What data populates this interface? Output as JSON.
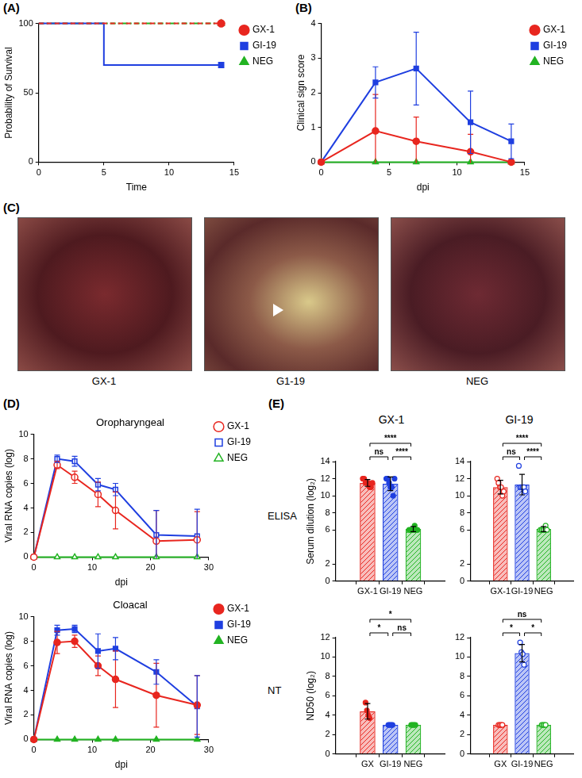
{
  "panel_labels": [
    "(A)",
    "(B)",
    "(C)",
    "(D)",
    "(E)"
  ],
  "photos": {
    "labels": [
      "GX-1",
      "G1-19",
      "NEG"
    ]
  },
  "panel_e": {
    "column_heads": [
      "GX-1",
      "GI-19"
    ],
    "row_labels": [
      "ELISA",
      "NT"
    ]
  },
  "chart_data": [
    {
      "type": "step",
      "x_label": "Time",
      "y_label": "Probability of Survival",
      "xlim": [
        0,
        15
      ],
      "xticks": [
        0,
        5,
        10,
        15
      ],
      "ylim": [
        0,
        100
      ],
      "yticks": [
        0,
        50,
        100
      ],
      "grid": false,
      "legend": "right",
      "series": [
        {
          "name": "GX-1",
          "color": "#e8261f",
          "marker": "circle",
          "line_style": "dashed",
          "x": [
            0,
            14
          ],
          "values": [
            100,
            100
          ]
        },
        {
          "name": "GI-19",
          "color": "#1f3fe0",
          "marker": "square",
          "line_style": "solid",
          "x": [
            0,
            5,
            14
          ],
          "values": [
            100,
            70,
            70
          ]
        },
        {
          "name": "NEG",
          "color": "#22b322",
          "marker": "triangle",
          "line_style": "dashdot",
          "x": [
            0,
            14
          ],
          "values": [
            100,
            100
          ]
        }
      ]
    },
    {
      "type": "line",
      "x_label": "dpi",
      "y_label": "Clinical sign score",
      "x": [
        0,
        4,
        7,
        11,
        14
      ],
      "xlim": [
        0,
        15
      ],
      "xticks": [
        0,
        5,
        10,
        15
      ],
      "ylim": [
        0,
        4
      ],
      "yticks": [
        0,
        1,
        2,
        3,
        4
      ],
      "grid": false,
      "legend": "right",
      "series": [
        {
          "name": "GX-1",
          "color": "#e8261f",
          "marker": "circle",
          "line_style": "solid",
          "values": [
            0,
            0.9,
            0.6,
            0.3,
            0
          ],
          "errors": [
            0,
            1.05,
            0.7,
            0.5,
            0
          ]
        },
        {
          "name": "GI-19",
          "color": "#1f3fe0",
          "marker": "square",
          "line_style": "solid",
          "values": [
            0,
            2.3,
            2.7,
            1.15,
            0.6
          ],
          "errors": [
            0,
            0.45,
            1.05,
            0.9,
            0.5
          ]
        },
        {
          "name": "NEG",
          "color": "#22b322",
          "marker": "triangle",
          "line_style": "solid",
          "values": [
            0,
            0,
            0,
            0,
            0
          ],
          "errors": [
            0,
            0,
            0,
            0,
            0
          ]
        }
      ]
    },
    {
      "type": "line",
      "title": "Oropharyngeal",
      "x_label": "dpi",
      "y_label": "Viral RNA copies (log)",
      "x": [
        0,
        4,
        7,
        11,
        14,
        21,
        28
      ],
      "xlim": [
        0,
        30
      ],
      "xticks": [
        0,
        10,
        20,
        30
      ],
      "ylim": [
        0,
        10
      ],
      "yticks": [
        0,
        2,
        4,
        6,
        8,
        10
      ],
      "grid": false,
      "legend": "right",
      "series": [
        {
          "name": "GX-1",
          "color": "#e8261f",
          "marker": "open_circle",
          "line_style": "solid",
          "values": [
            0,
            7.5,
            6.5,
            5.1,
            3.8,
            1.3,
            1.4
          ],
          "errors": [
            0,
            0.3,
            0.5,
            1.0,
            1.5,
            2.5,
            2.3
          ]
        },
        {
          "name": "GI-19",
          "color": "#1f3fe0",
          "marker": "open_square",
          "line_style": "solid",
          "values": [
            0,
            8.0,
            7.8,
            5.9,
            5.5,
            1.8,
            1.7
          ],
          "errors": [
            0,
            0.3,
            0.4,
            0.5,
            0.5,
            2.0,
            2.2
          ]
        },
        {
          "name": "NEG",
          "color": "#22b322",
          "marker": "open_triangle",
          "line_style": "solid",
          "values": [
            0,
            0,
            0,
            0,
            0,
            0,
            0
          ],
          "errors": [
            0,
            0,
            0,
            0,
            0,
            0,
            0
          ]
        }
      ]
    },
    {
      "type": "line",
      "title": "Cloacal",
      "x_label": "dpi",
      "y_label": "Viral RNA copies (log)",
      "x": [
        0,
        4,
        7,
        11,
        14,
        21,
        28
      ],
      "xlim": [
        0,
        30
      ],
      "xticks": [
        0,
        10,
        20,
        30
      ],
      "ylim": [
        0,
        10
      ],
      "yticks": [
        0,
        2,
        4,
        6,
        8,
        10
      ],
      "grid": false,
      "legend": "right",
      "series": [
        {
          "name": "GX-1",
          "color": "#e8261f",
          "marker": "circle",
          "line_style": "solid",
          "values": [
            0,
            7.9,
            8.0,
            6.0,
            4.9,
            3.6,
            2.8
          ],
          "errors": [
            0,
            0.9,
            0.5,
            0.8,
            2.3,
            2.6,
            2.4
          ]
        },
        {
          "name": "GI-19",
          "color": "#1f3fe0",
          "marker": "square",
          "line_style": "solid",
          "values": [
            0,
            8.9,
            9.0,
            7.2,
            7.4,
            5.5,
            2.7
          ],
          "errors": [
            0,
            0.4,
            0.3,
            1.4,
            0.9,
            1.0,
            2.5
          ]
        },
        {
          "name": "NEG",
          "color": "#22b322",
          "marker": "triangle",
          "line_style": "solid",
          "values": [
            0,
            0,
            0,
            0,
            0,
            0,
            0
          ],
          "errors": [
            0,
            0,
            0,
            0,
            0,
            0,
            0
          ]
        }
      ]
    },
    {
      "type": "bar",
      "y_label": "Serum dilution (log₂)",
      "categories": [
        "GX-1",
        "GI-19",
        "NEG"
      ],
      "colors": [
        "#e8261f",
        "#1f3fe0",
        "#22b322"
      ],
      "values": [
        11.5,
        11.4,
        6.1
      ],
      "errors": [
        0.4,
        0.8,
        0.3
      ],
      "points": [
        [
          12,
          12,
          11.5,
          11.5,
          11.5,
          11,
          11,
          11.5
        ],
        [
          12,
          12,
          11.5,
          11,
          11,
          10,
          12
        ],
        [
          6,
          6,
          6,
          6,
          6.5,
          6,
          6
        ]
      ],
      "marker": "circle",
      "ylim": [
        0,
        14
      ],
      "yticks": [
        0,
        2,
        6,
        8,
        10,
        12,
        14
      ],
      "grid": false,
      "comparisons": [
        {
          "between": [
            "GX-1",
            "GI-19"
          ],
          "label": "ns"
        },
        {
          "between": [
            "GI-19",
            "NEG"
          ],
          "label": "****"
        },
        {
          "between": [
            "GX-1",
            "NEG"
          ],
          "label": "****"
        }
      ]
    },
    {
      "type": "bar",
      "categories": [
        "GX-1",
        "GI-19",
        "NEG"
      ],
      "colors": [
        "#e8261f",
        "#1f3fe0",
        "#22b322"
      ],
      "values": [
        11.0,
        11.3,
        6.1
      ],
      "errors": [
        0.8,
        1.2,
        0.3
      ],
      "points": [
        [
          12,
          11.5,
          11,
          11,
          10,
          10.5
        ],
        [
          13.5,
          11,
          11,
          11,
          11,
          10.5
        ],
        [
          6,
          6,
          6,
          6,
          6.5,
          6
        ]
      ],
      "marker": "open_circle",
      "ylim": [
        0,
        14
      ],
      "yticks": [
        0,
        2,
        6,
        8,
        10,
        12,
        14
      ],
      "grid": false,
      "comparisons": [
        {
          "between": [
            "GX-1",
            "GI-19"
          ],
          "label": "ns"
        },
        {
          "between": [
            "GI-19",
            "NEG"
          ],
          "label": "****"
        },
        {
          "between": [
            "GX-1",
            "NEG"
          ],
          "label": "****"
        }
      ]
    },
    {
      "type": "bar",
      "y_label": "ND50 (log₂)",
      "categories": [
        "GX",
        "GI-19",
        "NEG"
      ],
      "colors": [
        "#e8261f",
        "#1f3fe0",
        "#22b322"
      ],
      "values": [
        4.4,
        3,
        3
      ],
      "errors": [
        0.8,
        0,
        0
      ],
      "points": [
        [
          5.3,
          4.5,
          4,
          3.7
        ],
        [
          3,
          3,
          3,
          3
        ],
        [
          3,
          3,
          3,
          3
        ]
      ],
      "marker": "circle",
      "ylim": [
        0,
        12
      ],
      "yticks": [
        0,
        2,
        4,
        6,
        8,
        10,
        12
      ],
      "grid": false,
      "comparisons": [
        {
          "between": [
            "GX",
            "GI-19"
          ],
          "label": "*"
        },
        {
          "between": [
            "GI-19",
            "NEG"
          ],
          "label": "ns"
        },
        {
          "between": [
            "GX",
            "NEG"
          ],
          "label": "*"
        }
      ]
    },
    {
      "type": "bar",
      "categories": [
        "GX",
        "GI-19",
        "NEG"
      ],
      "colors": [
        "#e8261f",
        "#1f3fe0",
        "#22b322"
      ],
      "values": [
        3,
        10.4,
        3
      ],
      "errors": [
        0,
        0.9,
        0
      ],
      "points": [
        [
          3,
          3,
          3,
          3
        ],
        [
          11.5,
          10.5,
          10.3,
          9.2
        ],
        [
          3,
          3,
          3,
          3
        ]
      ],
      "marker": "open_circle",
      "ylim": [
        0,
        12
      ],
      "yticks": [
        0,
        2,
        4,
        6,
        8,
        10,
        12
      ],
      "grid": false,
      "comparisons": [
        {
          "between": [
            "GX",
            "GI-19"
          ],
          "label": "*"
        },
        {
          "between": [
            "GI-19",
            "NEG"
          ],
          "label": "*"
        },
        {
          "between": [
            "GX",
            "NEG"
          ],
          "label": "ns"
        }
      ]
    }
  ]
}
